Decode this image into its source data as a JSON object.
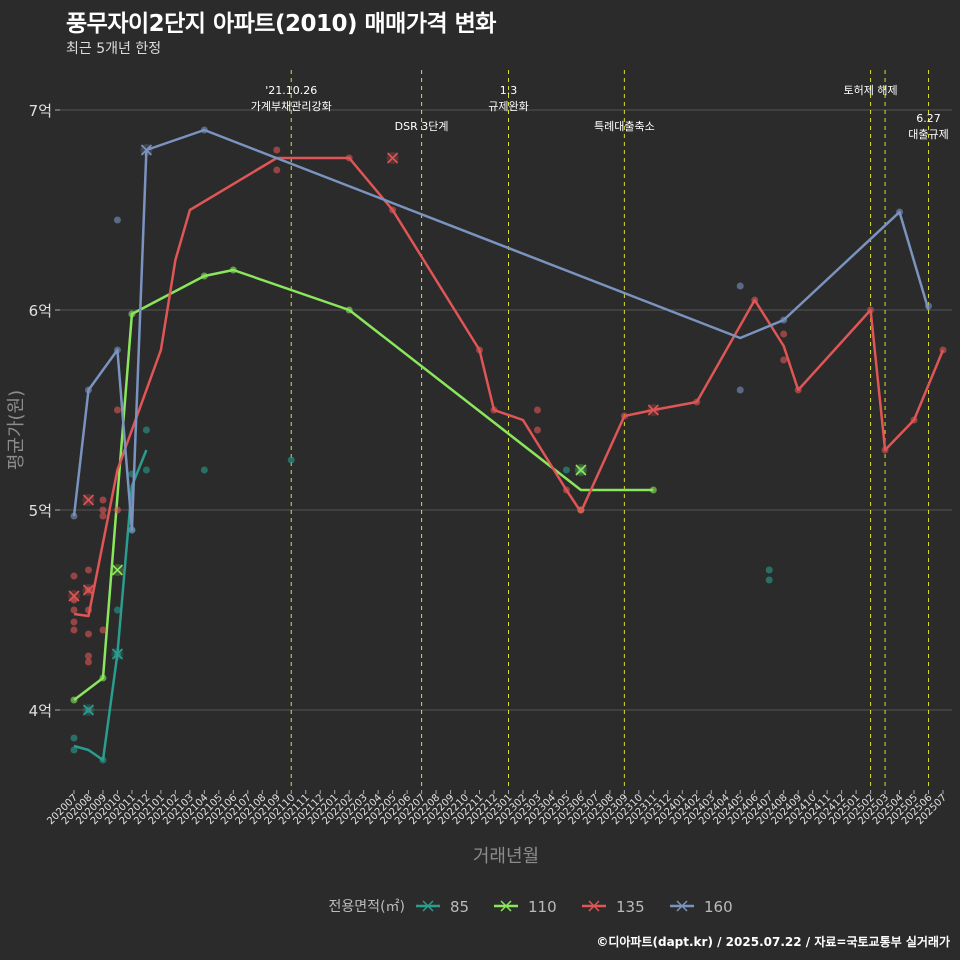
{
  "title": "풍무자이2단지 아파트(2010) 매매가격 변화",
  "subtitle": "최근 5개년 한정",
  "caption": "©디아파트(dapt.kr) / 2025.07.22 / 자료=국토교통부 실거래가",
  "colors": {
    "background": "#2b2b2b",
    "grid": "#555555",
    "event_line": "#d9e021",
    "text": "#e0e0e0"
  },
  "chart_data": {
    "type": "line",
    "xlabel": "거래년월",
    "ylabel": "평균가(원)",
    "ylim": [
      3.6,
      7.2
    ],
    "yticks": [
      {
        "value": 4,
        "label": "4억"
      },
      {
        "value": 5,
        "label": "5억"
      },
      {
        "value": 6,
        "label": "6억"
      },
      {
        "value": 7,
        "label": "7억"
      }
    ],
    "categories": [
      "202007",
      "202008",
      "202009",
      "202010",
      "202011",
      "202012",
      "202101",
      "202102",
      "202103",
      "202104",
      "202105",
      "202106",
      "202107",
      "202108",
      "202109",
      "202110",
      "202111",
      "202112",
      "202201",
      "202202",
      "202203",
      "202204",
      "202205",
      "202206",
      "202207",
      "202208",
      "202209",
      "202210",
      "202211",
      "202212",
      "202301",
      "202302",
      "202303",
      "202304",
      "202305",
      "202306",
      "202307",
      "202308",
      "202309",
      "202310",
      "202311",
      "202312",
      "202401",
      "202402",
      "202403",
      "202404",
      "202405",
      "202406",
      "202407",
      "202408",
      "202409",
      "202410",
      "202411",
      "202412",
      "202501",
      "202502",
      "202503",
      "202504",
      "202505",
      "202506",
      "202507"
    ],
    "legend_title": "전용면적(㎡)",
    "legend_position": "bottom",
    "series": [
      {
        "name": "85",
        "color": "#2a9d8f",
        "line": [
          [
            "202007",
            3.82
          ],
          [
            "202008",
            3.8
          ],
          [
            "202009",
            3.75
          ],
          [
            "202010",
            4.28
          ],
          [
            "202011",
            5.12
          ],
          [
            "202012",
            5.3
          ]
        ],
        "points": [
          [
            "202007",
            3.86
          ],
          [
            "202007",
            3.8
          ],
          [
            "202008",
            4.0
          ],
          [
            "202009",
            3.75
          ],
          [
            "202010",
            4.28
          ],
          [
            "202010",
            4.5
          ],
          [
            "202011",
            5.18
          ],
          [
            "202011",
            4.9
          ],
          [
            "202012",
            5.4
          ],
          [
            "202012",
            5.2
          ],
          [
            "202104",
            5.2
          ],
          [
            "202110",
            5.25
          ],
          [
            "202305",
            5.2
          ],
          [
            "202306",
            5.2
          ],
          [
            "202407",
            4.7
          ],
          [
            "202407",
            4.65
          ]
        ],
        "crosses": [
          [
            "202008",
            4.0
          ],
          [
            "202010",
            4.28
          ]
        ]
      },
      {
        "name": "110",
        "color": "#8ae65c",
        "line": [
          [
            "202007",
            4.05
          ],
          [
            "202009",
            4.16
          ],
          [
            "202011",
            5.98
          ],
          [
            "202104",
            6.17
          ],
          [
            "202106",
            6.2
          ],
          [
            "202202",
            6.0
          ],
          [
            "202306",
            5.1
          ],
          [
            "202311",
            5.1
          ]
        ],
        "points": [
          [
            "202007",
            4.05
          ],
          [
            "202009",
            4.16
          ],
          [
            "202011",
            5.98
          ],
          [
            "202104",
            6.17
          ],
          [
            "202106",
            6.2
          ],
          [
            "202202",
            6.0
          ],
          [
            "202306",
            5.0
          ],
          [
            "202311",
            5.1
          ]
        ],
        "crosses": [
          [
            "202010",
            4.7
          ],
          [
            "202306",
            5.2
          ]
        ]
      },
      {
        "name": "135",
        "color": "#e05555",
        "line": [
          [
            "202007",
            4.48
          ],
          [
            "202008",
            4.47
          ],
          [
            "202010",
            5.2
          ],
          [
            "202101",
            5.8
          ],
          [
            "202102",
            6.25
          ],
          [
            "202103",
            6.5
          ],
          [
            "202109",
            6.76
          ],
          [
            "202202",
            6.76
          ],
          [
            "202205",
            6.5
          ],
          [
            "202211",
            5.8
          ],
          [
            "202212",
            5.5
          ],
          [
            "202302",
            5.45
          ],
          [
            "202305",
            5.1
          ],
          [
            "202306",
            4.99
          ],
          [
            "202309",
            5.47
          ],
          [
            "202311",
            5.5
          ],
          [
            "202402",
            5.54
          ],
          [
            "202406",
            6.05
          ],
          [
            "202408",
            5.82
          ],
          [
            "202409",
            5.6
          ],
          [
            "202502",
            6.0
          ],
          [
            "202503",
            5.3
          ],
          [
            "202505",
            5.45
          ],
          [
            "202507",
            5.8
          ]
        ],
        "points": [
          [
            "202007",
            4.67
          ],
          [
            "202007",
            4.55
          ],
          [
            "202007",
            4.5
          ],
          [
            "202007",
            4.44
          ],
          [
            "202007",
            4.4
          ],
          [
            "202008",
            4.7
          ],
          [
            "202008",
            4.6
          ],
          [
            "202008",
            4.5
          ],
          [
            "202008",
            4.38
          ],
          [
            "202008",
            4.27
          ],
          [
            "202008",
            4.24
          ],
          [
            "202009",
            5.05
          ],
          [
            "202009",
            5.0
          ],
          [
            "202009",
            4.97
          ],
          [
            "202009",
            4.4
          ],
          [
            "202010",
            5.5
          ],
          [
            "202010",
            5.0
          ],
          [
            "202109",
            6.8
          ],
          [
            "202109",
            6.7
          ],
          [
            "202202",
            6.76
          ],
          [
            "202205",
            6.5
          ],
          [
            "202211",
            5.8
          ],
          [
            "202212",
            5.5
          ],
          [
            "202303",
            5.5
          ],
          [
            "202303",
            5.4
          ],
          [
            "202305",
            5.1
          ],
          [
            "202306",
            5.0
          ],
          [
            "202309",
            5.47
          ],
          [
            "202402",
            5.54
          ],
          [
            "202406",
            6.05
          ],
          [
            "202408",
            5.88
          ],
          [
            "202408",
            5.75
          ],
          [
            "202409",
            5.6
          ],
          [
            "202502",
            6.0
          ],
          [
            "202503",
            5.3
          ],
          [
            "202505",
            5.45
          ],
          [
            "202507",
            5.8
          ]
        ],
        "crosses": [
          [
            "202007",
            4.57
          ],
          [
            "202008",
            5.05
          ],
          [
            "202008",
            4.6
          ],
          [
            "202205",
            6.76
          ],
          [
            "202311",
            5.5
          ]
        ]
      },
      {
        "name": "160",
        "color": "#7a93bf",
        "line": [
          [
            "202007",
            4.97
          ],
          [
            "202008",
            5.6
          ],
          [
            "202010",
            5.8
          ],
          [
            "202011",
            4.9
          ],
          [
            "202012",
            6.8
          ],
          [
            "202104",
            6.9
          ],
          [
            "202405",
            5.86
          ],
          [
            "202408",
            5.95
          ],
          [
            "202504",
            6.49
          ],
          [
            "202506",
            6.0
          ]
        ],
        "points": [
          [
            "202007",
            4.97
          ],
          [
            "202008",
            5.6
          ],
          [
            "202010",
            6.45
          ],
          [
            "202010",
            5.8
          ],
          [
            "202011",
            4.9
          ],
          [
            "202104",
            6.9
          ],
          [
            "202405",
            6.12
          ],
          [
            "202405",
            5.6
          ],
          [
            "202408",
            5.95
          ],
          [
            "202504",
            6.49
          ],
          [
            "202506",
            6.02
          ]
        ],
        "crosses": [
          [
            "202012",
            6.8
          ]
        ]
      }
    ],
    "events": [
      {
        "x": "202110",
        "lines": [
          "'21.10.26",
          "가계부채관리강화"
        ],
        "level": 0
      },
      {
        "x": "202207",
        "lines": [
          "DSR 3단계"
        ],
        "level": 1
      },
      {
        "x": "202301",
        "lines": [
          "1.3",
          "규제완화"
        ],
        "level": 0
      },
      {
        "x": "202309",
        "lines": [
          "특례대출축소"
        ],
        "level": 1
      },
      {
        "x": "202502",
        "lines": [
          "토허제 해제"
        ],
        "level": 0
      },
      {
        "x": "202503",
        "lines": [],
        "level": 0
      },
      {
        "x": "202506",
        "lines": [
          "6.27",
          "대출규제"
        ],
        "level": 2
      }
    ]
  }
}
